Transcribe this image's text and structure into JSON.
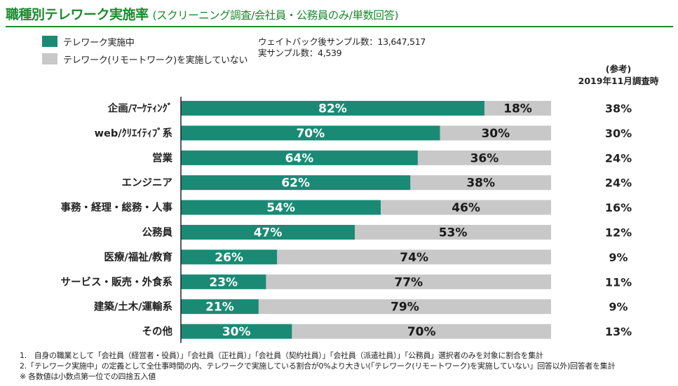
{
  "header": {
    "title": "職種別テレワーク実施率",
    "subtitle": "(スクリーニング調査/会社員・公務員のみ/単数回答)"
  },
  "legend": {
    "items": [
      {
        "label": "テレワーク実施中",
        "color": "#1a8a75"
      },
      {
        "label": "テレワーク(リモートワーク)を実施していない",
        "color": "#c8c8c8"
      }
    ]
  },
  "sample": {
    "weighted": "ウェイトバック後サンプル数：13,647,517",
    "actual": "実サンプル数：4,539"
  },
  "reference": {
    "heading_line1": "(参考)",
    "heading_line2": "2019年11月調査時"
  },
  "chart_data": {
    "type": "bar",
    "orientation": "horizontal",
    "stacked": true,
    "normalized_percent": true,
    "categories": [
      "企画/ﾏｰｹﾃｨﾝｸﾞ",
      "web/ｸﾘｴｲﾃｨﾌﾞ系",
      "営業",
      "エンジニア",
      "事務・経理・総務・人事",
      "公務員",
      "医療/福祉/教育",
      "サービス・販売・外食系",
      "建築/土木/運輸系",
      "その他"
    ],
    "series": [
      {
        "name": "テレワーク実施中",
        "color": "#1a8a75",
        "label_color": "#ffffff",
        "values": [
          82,
          70,
          64,
          62,
          54,
          47,
          26,
          23,
          21,
          30
        ],
        "labels": [
          "82%",
          "70%",
          "64%",
          "62%",
          "54%",
          "47%",
          "26%",
          "23%",
          "21%",
          "30%"
        ]
      },
      {
        "name": "テレワーク(リモートワーク)を実施していない",
        "color": "#c8c8c8",
        "label_color": "#1a1a1a",
        "values": [
          18,
          30,
          36,
          38,
          46,
          53,
          74,
          77,
          79,
          70
        ],
        "labels": [
          "18%",
          "30%",
          "36%",
          "38%",
          "46%",
          "53%",
          "74%",
          "77%",
          "79%",
          "70%"
        ]
      }
    ],
    "reference_values": [
      38,
      30,
      24,
      24,
      16,
      12,
      9,
      11,
      9,
      13
    ],
    "reference_labels": [
      "38%",
      "30%",
      "24%",
      "24%",
      "16%",
      "12%",
      "9%",
      "11%",
      "9%",
      "13%"
    ],
    "xlim": [
      0,
      100
    ]
  },
  "notes": [
    "1.　自身の職業として「会社員（経営者・役員）」「会社員（正社員）」「会社員（契約社員）」「会社員（派遣社員）」「公務員」選択者のみを対象に割合を集計",
    "2.「テレワーク実施中」の定義として全仕事時間の内、テレワークで実施している割合が0%より大きい(「テレワーク(リモートワーク)を実施していない」回答以外)回答者を集計",
    "※ 各数値は小数点第一位での四捨五入値"
  ]
}
